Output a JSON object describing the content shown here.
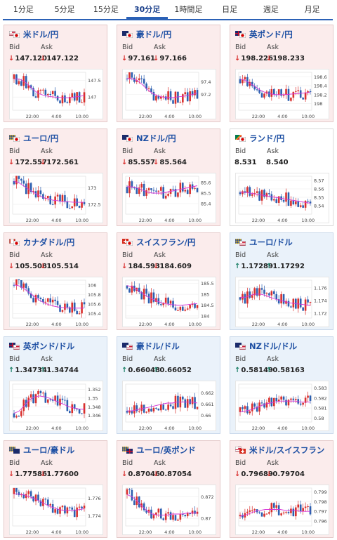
{
  "tabs": [
    "1分足",
    "5分足",
    "15分足",
    "30分足",
    "1時間足",
    "日足",
    "週足",
    "月足"
  ],
  "active_tab": 3,
  "labels": {
    "bid": "Bid",
    "ask": "Ask"
  },
  "colors": {
    "down_bg": "#fbecec",
    "up_bg": "#eaf2fa",
    "down": "#d9302e",
    "up": "#1a7f66",
    "ma": "#d633d6",
    "candle_up": "#d9302e",
    "candle_down": "#2d5fb0"
  },
  "x_ticks": [
    "22:00",
    "4:00",
    "10:00"
  ],
  "pairs": [
    {
      "name": "米ドル/円",
      "flags": [
        "us",
        "jp"
      ],
      "trend": "down",
      "bid": "147.120",
      "ask": "147.122",
      "ticks": [
        "147.5",
        "147"
      ],
      "tick_vals": [
        147.5,
        147.0
      ],
      "range": [
        146.6,
        147.75
      ],
      "ma": [
        147.55,
        147.55,
        147.48,
        147.35,
        147.2,
        147.1,
        147.05,
        147.02,
        147.0,
        146.99,
        146.98,
        146.98,
        147.0,
        147.02,
        147.05
      ]
    },
    {
      "name": "豪ドル/円",
      "flags": [
        "au",
        "jp"
      ],
      "trend": "down",
      "bid": "97.161",
      "ask": "97.166",
      "ticks": [
        "97.4",
        "97.2"
      ],
      "tick_vals": [
        97.4,
        97.2
      ],
      "range": [
        96.95,
        97.55
      ],
      "ma": [
        97.45,
        97.45,
        97.42,
        97.36,
        97.28,
        97.22,
        97.18,
        97.16,
        97.15,
        97.15,
        97.16,
        97.17,
        97.18,
        97.2,
        97.22
      ]
    },
    {
      "name": "英ポンド/円",
      "flags": [
        "gb",
        "jp"
      ],
      "trend": "down",
      "bid": "198.226",
      "ask": "198.233",
      "ticks": [
        "198.6",
        "198.4",
        "198.2",
        "198"
      ],
      "tick_vals": [
        198.6,
        198.4,
        198.2,
        198.0
      ],
      "range": [
        197.85,
        198.7
      ],
      "ma": [
        198.55,
        198.52,
        198.45,
        198.38,
        198.3,
        198.25,
        198.22,
        198.2,
        198.2,
        198.2,
        198.21,
        198.22,
        198.23,
        198.24,
        198.25
      ]
    },
    {
      "name": "ユーロ/円",
      "flags": [
        "eu",
        "jp"
      ],
      "trend": "down",
      "bid": "172.557",
      "ask": "172.561",
      "ticks": [
        "173",
        "172.5"
      ],
      "tick_vals": [
        173.0,
        172.5
      ],
      "range": [
        172.2,
        173.35
      ],
      "ma": [
        173.2,
        173.15,
        173.05,
        172.95,
        172.85,
        172.76,
        172.7,
        172.65,
        172.62,
        172.6,
        172.58,
        172.57,
        172.56,
        172.56,
        172.56
      ]
    },
    {
      "name": "NZドル/円",
      "flags": [
        "nz",
        "jp"
      ],
      "trend": "down",
      "bid": "85.557",
      "ask": "85.564",
      "ticks": [
        "85.6",
        "85.5",
        "85.4"
      ],
      "tick_vals": [
        85.6,
        85.5,
        85.4
      ],
      "range": [
        85.3,
        85.66
      ],
      "ma": [
        85.56,
        85.56,
        85.55,
        85.53,
        85.51,
        85.5,
        85.5,
        85.5,
        85.51,
        85.52,
        85.53,
        85.54,
        85.55,
        85.56,
        85.57
      ]
    },
    {
      "name": "ランド/円",
      "flags": [
        "za",
        "jp"
      ],
      "trend": "neutral",
      "bid": "8.531",
      "ask": "8.540",
      "ticks": [
        "8.57",
        "8.56",
        "8.55",
        "8.54"
      ],
      "tick_vals": [
        8.57,
        8.56,
        8.55,
        8.54
      ],
      "range": [
        8.53,
        8.575
      ],
      "ma": [
        8.556,
        8.556,
        8.555,
        8.554,
        8.553,
        8.552,
        8.551,
        8.55,
        8.549,
        8.548,
        8.547,
        8.546,
        8.545,
        8.544,
        8.543
      ]
    },
    {
      "name": "カナダドル/円",
      "flags": [
        "ca",
        "jp"
      ],
      "trend": "down",
      "bid": "105.508",
      "ask": "105.514",
      "ticks": [
        "106",
        "105.8",
        "105.6",
        "105.4"
      ],
      "tick_vals": [
        106.0,
        105.8,
        105.6,
        105.4
      ],
      "range": [
        105.3,
        106.1
      ],
      "ma": [
        106.0,
        105.98,
        105.92,
        105.84,
        105.76,
        105.68,
        105.62,
        105.58,
        105.55,
        105.53,
        105.52,
        105.51,
        105.51,
        105.51,
        105.51
      ]
    },
    {
      "name": "スイスフラン/円",
      "flags": [
        "ch",
        "jp"
      ],
      "trend": "down",
      "bid": "184.593",
      "ask": "184.609",
      "ticks": [
        "185.5",
        "185",
        "184.5",
        "184"
      ],
      "tick_vals": [
        185.5,
        185.0,
        184.5,
        184.0
      ],
      "range": [
        183.9,
        185.65
      ],
      "ma": [
        185.4,
        185.35,
        185.2,
        185.05,
        184.9,
        184.78,
        184.68,
        184.6,
        184.55,
        184.52,
        184.5,
        184.5,
        184.52,
        184.55,
        184.57
      ]
    },
    {
      "name": "ユーロ/ドル",
      "flags": [
        "eu",
        "us"
      ],
      "trend": "up",
      "bid": "1.17289",
      "ask": "1.17292",
      "ticks": [
        "1.176",
        "1.174",
        "1.172"
      ],
      "tick_vals": [
        1.176,
        1.174,
        1.172
      ],
      "range": [
        1.1712,
        1.1772
      ],
      "ma": [
        1.1745,
        1.1745,
        1.1748,
        1.175,
        1.175,
        1.1748,
        1.1745,
        1.1742,
        1.174,
        1.1738,
        1.1736,
        1.1735,
        1.1734,
        1.1733,
        1.1732
      ]
    },
    {
      "name": "英ポンド/ドル",
      "flags": [
        "gb",
        "us"
      ],
      "trend": "up",
      "bid": "1.34734",
      "ask": "1.34744",
      "ticks": [
        "1.352",
        "1.35",
        "1.348",
        "1.346"
      ],
      "tick_vals": [
        1.352,
        1.35,
        1.348,
        1.346
      ],
      "range": [
        1.3445,
        1.3532
      ],
      "ma": [
        1.3465,
        1.347,
        1.3482,
        1.3495,
        1.3502,
        1.3505,
        1.3503,
        1.35,
        1.3495,
        1.349,
        1.3485,
        1.348,
        1.3477,
        1.3475,
        1.3474
      ]
    },
    {
      "name": "豪ドル/ドル",
      "flags": [
        "au",
        "us"
      ],
      "trend": "up",
      "bid": "0.66048",
      "ask": "0.66052",
      "ticks": [
        "0.662",
        "0.661",
        "0.66"
      ],
      "tick_vals": [
        0.662,
        0.661,
        0.66
      ],
      "range": [
        0.6594,
        0.6628
      ],
      "ma": [
        0.6604,
        0.6604,
        0.6605,
        0.6606,
        0.6607,
        0.6608,
        0.6609,
        0.661,
        0.6611,
        0.6611,
        0.6612,
        0.6612,
        0.6612,
        0.6612,
        0.6611
      ]
    },
    {
      "name": "NZドル/ドル",
      "flags": [
        "nz",
        "us"
      ],
      "trend": "up",
      "bid": "0.58149",
      "ask": "0.58163",
      "ticks": [
        "0.583",
        "0.582",
        "0.581",
        "0.58"
      ],
      "tick_vals": [
        0.583,
        0.582,
        0.581,
        0.58
      ],
      "range": [
        0.5796,
        0.5834
      ],
      "ma": [
        0.5806,
        0.5807,
        0.5808,
        0.581,
        0.5812,
        0.5814,
        0.5815,
        0.5816,
        0.5817,
        0.5817,
        0.5817,
        0.5817,
        0.5816,
        0.5816,
        0.5816
      ]
    },
    {
      "name": "ユーロ/豪ドル",
      "flags": [
        "eu",
        "au"
      ],
      "trend": "down",
      "bid": "1.77586",
      "ask": "1.77600",
      "ticks": [
        "1.776",
        "1.774"
      ],
      "tick_vals": [
        1.776,
        1.774
      ],
      "range": [
        1.7728,
        1.7772
      ],
      "ma": [
        1.7765,
        1.7765,
        1.7764,
        1.7762,
        1.776,
        1.7757,
        1.7754,
        1.7751,
        1.7749,
        1.7747,
        1.7746,
        1.7746,
        1.7746,
        1.7747,
        1.7748
      ]
    },
    {
      "name": "ユーロ/英ポンド",
      "flags": [
        "eu",
        "gb"
      ],
      "trend": "down",
      "bid": "0.87046",
      "ask": "0.87054",
      "ticks": [
        "0.872",
        "0.87"
      ],
      "tick_vals": [
        0.872,
        0.87
      ],
      "range": [
        0.8693,
        0.8728
      ],
      "ma": [
        0.8722,
        0.872,
        0.8716,
        0.8711,
        0.8707,
        0.8704,
        0.8703,
        0.8703,
        0.8703,
        0.8704,
        0.8704,
        0.8704,
        0.8705,
        0.8705,
        0.8705
      ]
    },
    {
      "name": "米ドル/スイスフラン",
      "flags": [
        "us",
        "ch"
      ],
      "trend": "down",
      "bid": "0.79689",
      "ask": "0.79704",
      "ticks": [
        "0.799",
        "0.798",
        "0.797",
        "0.796"
      ],
      "tick_vals": [
        0.799,
        0.798,
        0.797,
        0.796
      ],
      "range": [
        0.7955,
        0.7994
      ],
      "ma": [
        0.7965,
        0.7966,
        0.7968,
        0.797,
        0.7971,
        0.7972,
        0.7972,
        0.7972,
        0.7972,
        0.7971,
        0.7971,
        0.7971,
        0.797,
        0.797,
        0.797
      ]
    }
  ]
}
